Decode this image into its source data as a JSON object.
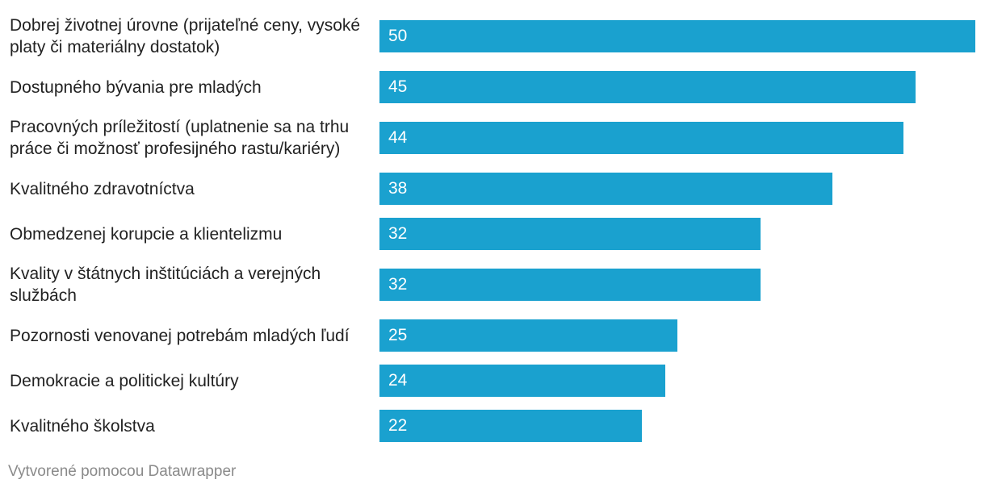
{
  "chart_data": {
    "type": "bar",
    "orientation": "horizontal",
    "categories": [
      "Dobrej životnej úrovne (prijateľné ceny, vysoké platy či materiálny dostatok)",
      "Dostupného bývania pre mladých",
      "Pracovných príležitostí (uplatnenie sa na trhu práce či možnosť profesijného rastu/kariéry)",
      "Kvalitného zdravotníctva",
      "Obmedzenej korupcie a klientelizmu",
      "Kvality v štátnych inštitúciách a verejných službách",
      "Pozornosti venovanej potrebám mladých ľudí",
      "Demokracie a politickej kultúry",
      "Kvalitného školstva"
    ],
    "values": [
      50,
      45,
      44,
      38,
      32,
      32,
      25,
      24,
      22
    ],
    "value_labels": [
      "50",
      "45",
      "44",
      "38",
      "32",
      "32",
      "25",
      "24",
      "22"
    ],
    "xlim": [
      0,
      50
    ],
    "bar_color": "#1aa1cf",
    "title": "",
    "xlabel": "",
    "ylabel": "",
    "grid": false,
    "legend": "none"
  },
  "footer": {
    "credit": "Vytvorené pomocou Datawrapper"
  }
}
